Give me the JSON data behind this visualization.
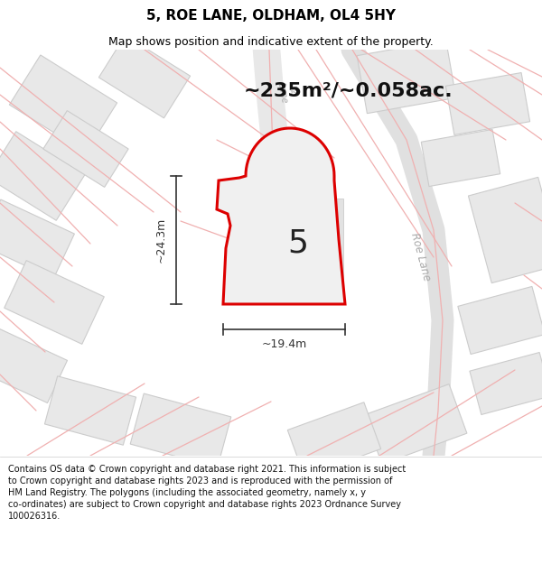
{
  "title": "5, ROE LANE, OLDHAM, OL4 5HY",
  "subtitle": "Map shows position and indicative extent of the property.",
  "footer": "Contains OS data © Crown copyright and database right 2021. This information is subject to Crown copyright and database rights 2023 and is reproduced with the permission of HM Land Registry. The polygons (including the associated geometry, namely x, y co-ordinates) are subject to Crown copyright and database rights 2023 Ordnance Survey 100026316.",
  "area_text": "~235m²/~0.058ac.",
  "label_number": "5",
  "dim_width": "~19.4m",
  "dim_height": "~24.3m",
  "map_bg": "#f7f7f7",
  "building_fill": "#e8e8e8",
  "building_edge": "#cccccc",
  "plot_fill": "#f0f0f0",
  "plot_edge": "#dd0000",
  "plot_edge_width": 2.2,
  "road_line_color": "#f0b0b0",
  "road_label_color": "#aaaaaa",
  "title_color": "#000000",
  "footer_color": "#111111",
  "dim_color": "#333333",
  "area_color": "#111111",
  "title_fontsize": 11,
  "subtitle_fontsize": 9,
  "area_fontsize": 16,
  "label_fontsize": 26,
  "dim_fontsize": 9,
  "footer_fontsize": 7
}
